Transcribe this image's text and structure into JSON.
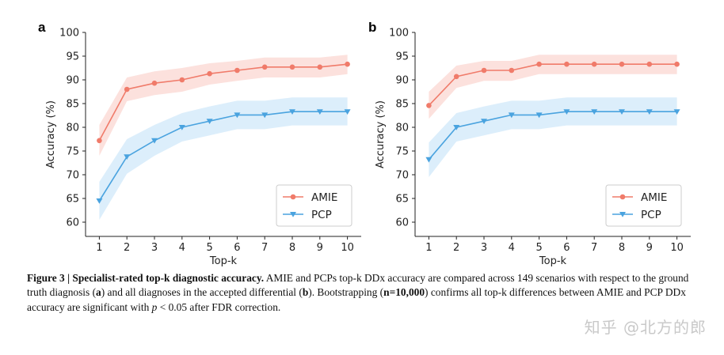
{
  "chart_data": [
    {
      "type": "line",
      "panel_label": "a",
      "title": "",
      "xlabel": "Top-k",
      "ylabel": "Accuracy (%)",
      "x": [
        1,
        2,
        3,
        4,
        5,
        6,
        7,
        8,
        9,
        10
      ],
      "xlim": [
        0.5,
        10.5
      ],
      "ylim": [
        57,
        100
      ],
      "yticks": [
        60,
        65,
        70,
        75,
        80,
        85,
        90,
        95,
        100
      ],
      "grid": false,
      "legend": "bottom-right",
      "series": [
        {
          "name": "AMIE",
          "color": "#f07b6a",
          "band_color": "#fcdcd7",
          "marker": "circle",
          "values": [
            77.2,
            88.0,
            89.3,
            90.0,
            91.3,
            92.0,
            92.7,
            92.7,
            92.7,
            93.3
          ],
          "lower": [
            74.0,
            85.5,
            86.8,
            87.5,
            89.0,
            89.8,
            90.5,
            90.5,
            90.5,
            91.2
          ],
          "upper": [
            80.5,
            90.5,
            91.8,
            92.5,
            93.5,
            94.0,
            94.7,
            94.7,
            94.7,
            95.3
          ]
        },
        {
          "name": "PCP",
          "color": "#4aa3df",
          "band_color": "#d6ebfa",
          "marker": "triangle-down",
          "values": [
            64.5,
            73.8,
            77.2,
            80.0,
            81.3,
            82.6,
            82.6,
            83.3,
            83.3,
            83.3
          ],
          "lower": [
            60.5,
            70.2,
            74.0,
            77.0,
            78.3,
            79.6,
            79.6,
            80.4,
            80.4,
            80.4
          ],
          "upper": [
            68.5,
            77.5,
            80.5,
            83.0,
            84.4,
            85.6,
            85.6,
            86.3,
            86.3,
            86.3
          ]
        }
      ]
    },
    {
      "type": "line",
      "panel_label": "b",
      "title": "",
      "xlabel": "Top-k",
      "ylabel": "Accuracy (%)",
      "x": [
        1,
        2,
        3,
        4,
        5,
        6,
        7,
        8,
        9,
        10
      ],
      "xlim": [
        0.5,
        10.5
      ],
      "ylim": [
        57,
        100
      ],
      "yticks": [
        60,
        65,
        70,
        75,
        80,
        85,
        90,
        95,
        100
      ],
      "grid": false,
      "legend": "bottom-right",
      "series": [
        {
          "name": "AMIE",
          "color": "#f07b6a",
          "band_color": "#fcdcd7",
          "marker": "circle",
          "values": [
            84.6,
            90.7,
            92.0,
            92.0,
            93.3,
            93.3,
            93.3,
            93.3,
            93.3,
            93.3
          ],
          "lower": [
            81.8,
            88.3,
            89.8,
            89.8,
            91.2,
            91.2,
            91.2,
            91.2,
            91.2,
            91.2
          ],
          "upper": [
            87.5,
            93.0,
            94.0,
            94.0,
            95.3,
            95.3,
            95.3,
            95.3,
            95.3,
            95.3
          ]
        },
        {
          "name": "PCP",
          "color": "#4aa3df",
          "band_color": "#d6ebfa",
          "marker": "triangle-down",
          "values": [
            73.2,
            80.0,
            81.3,
            82.6,
            82.6,
            83.3,
            83.3,
            83.3,
            83.3,
            83.3
          ],
          "lower": [
            69.5,
            77.0,
            78.3,
            79.6,
            79.6,
            80.4,
            80.4,
            80.4,
            80.4,
            80.4
          ],
          "upper": [
            76.8,
            83.0,
            84.4,
            85.6,
            85.6,
            86.3,
            86.3,
            86.3,
            86.3,
            86.3
          ]
        }
      ]
    }
  ],
  "caption": {
    "label": "Figure 3 | Specialist-rated top-k diagnostic accuracy.",
    "text_1": " AMIE and PCPs top-k DDx accuracy are compared across 149 scenarios with respect to the ground truth diagnosis (",
    "bold_a": "a",
    "text_2": ") and all diagnoses in the accepted differential (",
    "bold_b": "b",
    "text_3": "). Bootstrapping (",
    "bold_n": "n=10,000",
    "text_4": ") confirms all top-k differences between AMIE and PCP DDx accuracy are significant with ",
    "italic_p": "p",
    "text_5": " < 0.05 after FDR correction."
  },
  "watermark": "知乎 @北方的郎"
}
